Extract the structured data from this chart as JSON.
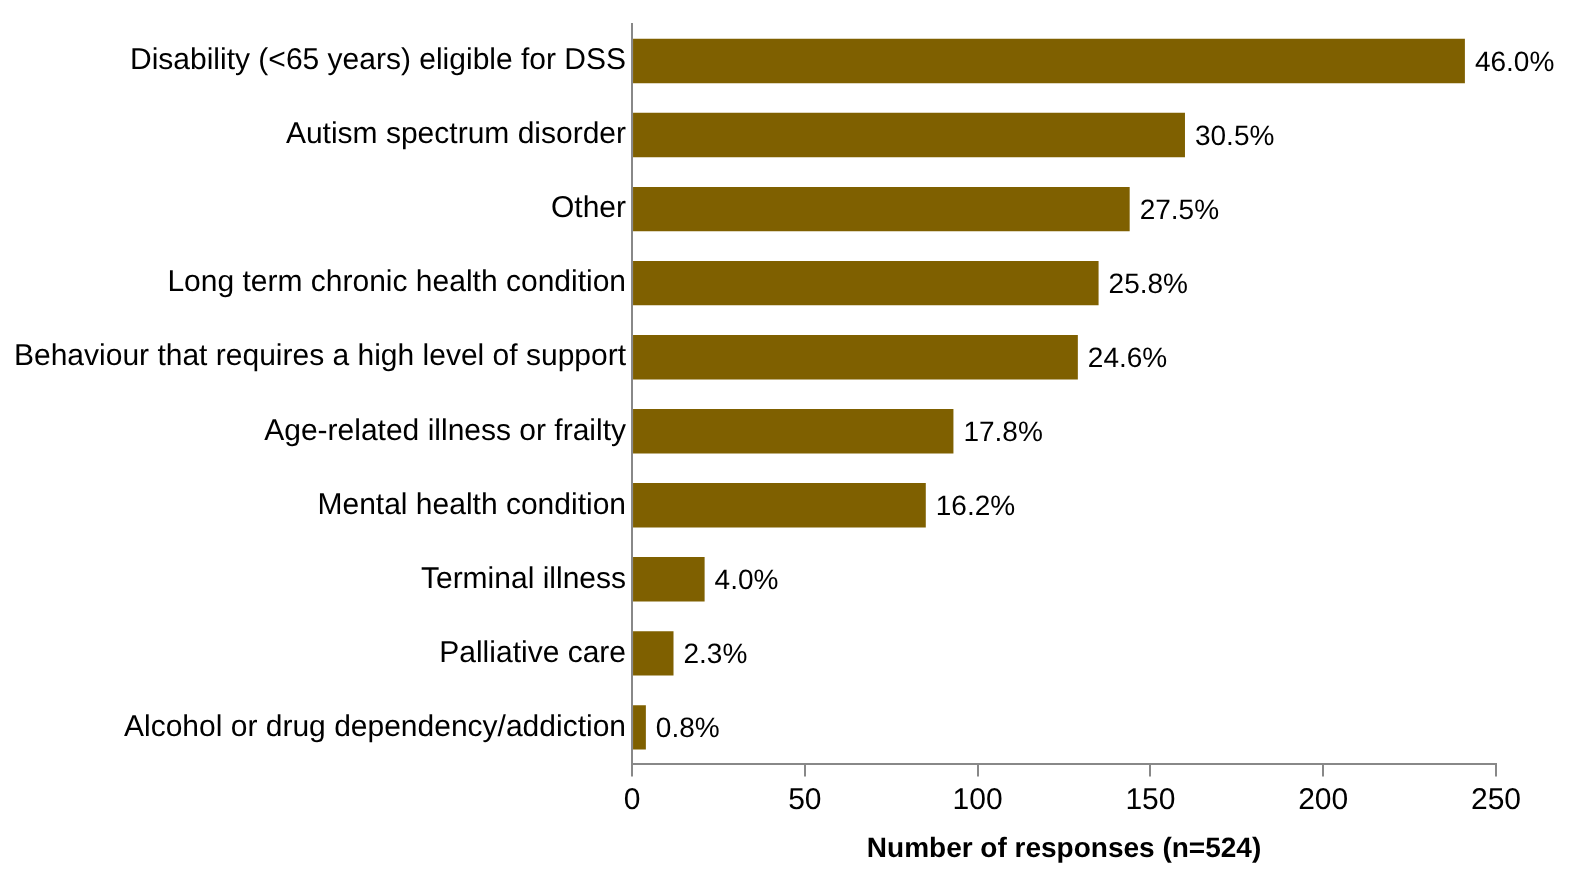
{
  "chart_data": {
    "type": "bar",
    "orientation": "horizontal",
    "xlabel": "Number of responses (n=524)",
    "categories": [
      "Disability (<65 years) eligible for DSS",
      "Autism spectrum disorder",
      "Other",
      "Long term chronic health condition",
      "Behaviour that requires a high level of support",
      "Age-related illness or frailty",
      "Mental health condition",
      "Terminal illness",
      "Palliative care",
      "Alcohol or drug dependency/addiction"
    ],
    "values": [
      241,
      160,
      144,
      135,
      129,
      93,
      85,
      21,
      12,
      4
    ],
    "annotations": [
      {
        "text": "46.0%",
        "x": 241,
        "y": "Disability (<65 years) eligible for DSS"
      },
      {
        "text": "30.5%",
        "x": 160,
        "y": "Autism spectrum disorder"
      },
      {
        "text": "27.5%",
        "x": 144,
        "y": "Other"
      },
      {
        "text": "25.8%",
        "x": 135,
        "y": "Long term chronic health condition"
      },
      {
        "text": "24.6%",
        "x": 129,
        "y": "Behaviour that requires a high level of support"
      },
      {
        "text": "17.8%",
        "x": 93,
        "y": "Age-related illness or frailty"
      },
      {
        "text": "16.2%",
        "x": 85,
        "y": "Mental health condition"
      },
      {
        "text": "4.0%",
        "x": 21,
        "y": "Terminal illness"
      },
      {
        "text": "2.3%",
        "x": 12,
        "y": "Palliative care"
      },
      {
        "text": "0.8%",
        "x": 4,
        "y": "Alcohol or drug dependency/addiction"
      }
    ],
    "color": "#7f6000",
    "xlim": [
      0,
      250
    ],
    "xticks": [
      0,
      50,
      100,
      150,
      200,
      250
    ],
    "grid": false,
    "legend": false
  }
}
